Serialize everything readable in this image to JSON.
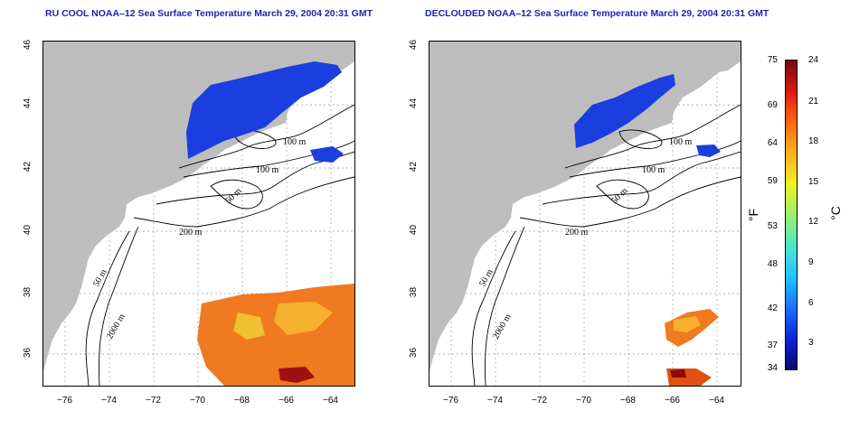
{
  "left_panel": {
    "title": "RU COOL NOAA–12 Sea Surface Temperature March 29, 2004 20:31 GMT",
    "contour_labels": [
      "100 m",
      "100 m",
      "50 m",
      "200 m",
      "50 m",
      "2000 m"
    ]
  },
  "right_panel": {
    "title": "DECLOUDED NOAA–12 Sea Surface Temperature March 29, 2004 20:31 GMT",
    "contour_labels": [
      "100 m",
      "100 m",
      "50 m",
      "200 m",
      "50 m",
      "2000 m"
    ]
  },
  "x_ticks": [
    "−76",
    "−74",
    "−72",
    "−70",
    "−68",
    "−66",
    "−64"
  ],
  "y_ticks": [
    "46",
    "44",
    "42",
    "40",
    "38",
    "36"
  ],
  "colorbar": {
    "unit_f": "°F",
    "unit_c": "°C",
    "f_ticks": [
      "75",
      "69",
      "64",
      "59",
      "53",
      "48",
      "42",
      "37",
      "34"
    ],
    "c_ticks": [
      "24",
      "21",
      "18",
      "15",
      "12",
      "9",
      "6",
      "3"
    ],
    "colors": [
      "#0a0a6e",
      "#0b24d8",
      "#1a70ff",
      "#22c4ff",
      "#4ee6c8",
      "#9af06a",
      "#f0f020",
      "#ffb020",
      "#ff6a10",
      "#d81a10",
      "#7a0a0a"
    ]
  }
}
